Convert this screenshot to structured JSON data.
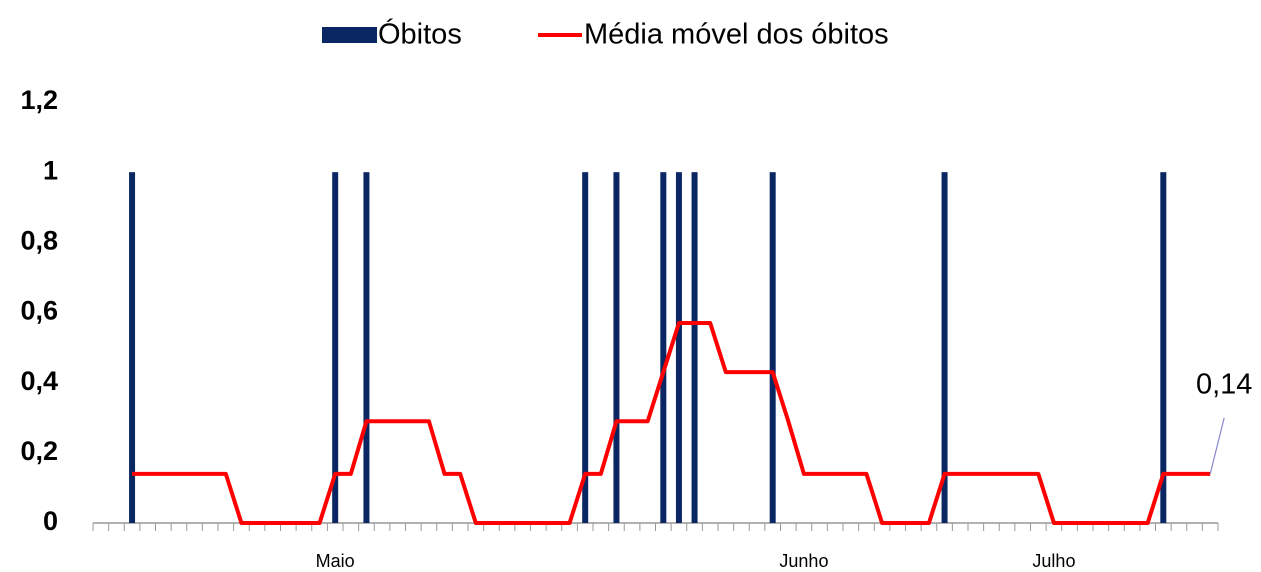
{
  "chart_data": {
    "type": "bar_line",
    "categories": [
      null,
      null,
      null,
      null,
      null,
      null,
      null,
      null,
      null,
      null,
      null,
      null,
      null,
      null,
      null,
      "Maio",
      null,
      null,
      null,
      null,
      null,
      null,
      null,
      null,
      null,
      null,
      null,
      null,
      null,
      null,
      null,
      null,
      null,
      null,
      null,
      null,
      null,
      null,
      null,
      null,
      null,
      null,
      null,
      null,
      null,
      "Junho",
      null,
      null,
      null,
      null,
      null,
      null,
      null,
      null,
      null,
      null,
      null,
      null,
      null,
      null,
      null,
      "Julho",
      null,
      null,
      null,
      null,
      null,
      null,
      null,
      null,
      null,
      null
    ],
    "series": [
      {
        "name": "Óbitos",
        "type": "bar",
        "color": "#0b2763",
        "values": [
          0,
          0,
          1,
          0,
          0,
          0,
          0,
          0,
          0,
          0,
          0,
          0,
          0,
          0,
          0,
          1,
          0,
          1,
          0,
          0,
          0,
          0,
          0,
          0,
          0,
          0,
          0,
          0,
          0,
          0,
          0,
          1,
          0,
          1,
          0,
          0,
          1,
          1,
          1,
          0,
          0,
          0,
          0,
          1,
          0,
          0,
          0,
          0,
          0,
          0,
          0,
          0,
          0,
          0,
          1,
          0,
          0,
          0,
          0,
          0,
          0,
          0,
          0,
          0,
          0,
          0,
          0,
          0,
          1,
          0,
          0,
          0
        ]
      },
      {
        "name": "Média móvel dos óbitos",
        "type": "line",
        "color": "#ff0000",
        "values": [
          null,
          null,
          0.14,
          0.14,
          0.14,
          0.14,
          0.14,
          0.14,
          0.14,
          0,
          0,
          0,
          0,
          0,
          0,
          0.14,
          0.14,
          0.29,
          0.29,
          0.29,
          0.29,
          0.29,
          0.14,
          0.14,
          0,
          0,
          0,
          0,
          0,
          0,
          0,
          0.14,
          0.14,
          0.29,
          0.29,
          0.29,
          0.43,
          0.57,
          0.57,
          0.57,
          0.43,
          0.43,
          0.43,
          0.43,
          0.29,
          0.14,
          0.14,
          0.14,
          0.14,
          0.14,
          0,
          0,
          0,
          0,
          0.14,
          0.14,
          0.14,
          0.14,
          0.14,
          0.14,
          0.14,
          0,
          0,
          0,
          0,
          0,
          0,
          0,
          0.14,
          0.14,
          0.14,
          0.14
        ],
        "value_labels": [
          null,
          null,
          null,
          null,
          null,
          null,
          null,
          null,
          null,
          null,
          null,
          null,
          null,
          null,
          null,
          null,
          null,
          null,
          null,
          null,
          null,
          null,
          null,
          null,
          null,
          null,
          null,
          null,
          null,
          null,
          null,
          null,
          null,
          null,
          null,
          null,
          null,
          null,
          null,
          null,
          null,
          null,
          null,
          null,
          null,
          null,
          null,
          null,
          null,
          null,
          null,
          null,
          null,
          null,
          null,
          null,
          null,
          null,
          null,
          null,
          null,
          null,
          null,
          null,
          null,
          null,
          null,
          null,
          null,
          null,
          null,
          "0,14"
        ]
      }
    ],
    "ylim": [
      0,
      1.2
    ],
    "yticks": [
      0,
      {
        "value": 0.2,
        "label": "0,2"
      },
      {
        "value": 0.4,
        "label": "0,4"
      },
      {
        "value": 0.6,
        "label": "0,6"
      },
      {
        "value": 0.8,
        "label": "0,8"
      },
      1,
      {
        "value": 1.2,
        "label": "1,2"
      }
    ],
    "grid": false,
    "legend": "top"
  }
}
